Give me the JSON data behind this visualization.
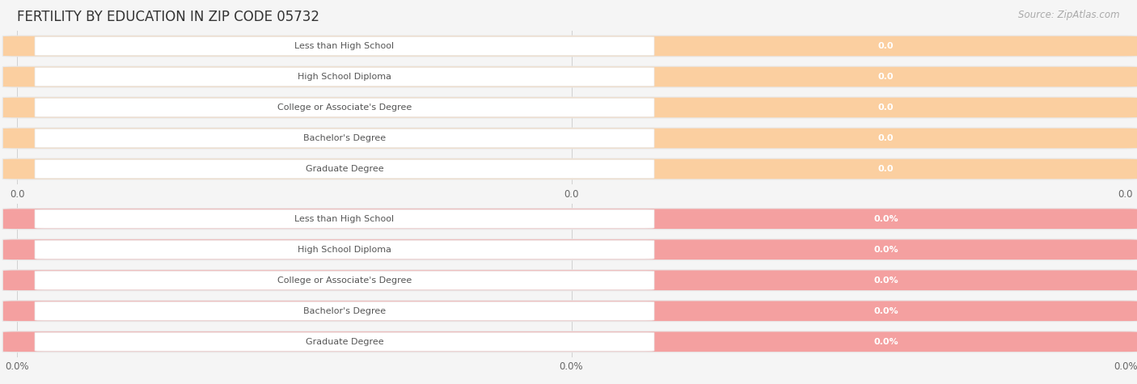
{
  "title": "FERTILITY BY EDUCATION IN ZIP CODE 05732",
  "source": "Source: ZipAtlas.com",
  "categories": [
    "Less than High School",
    "High School Diploma",
    "College or Associate's Degree",
    "Bachelor's Degree",
    "Graduate Degree"
  ],
  "top_values": [
    0.0,
    0.0,
    0.0,
    0.0,
    0.0
  ],
  "bottom_values": [
    0.0,
    0.0,
    0.0,
    0.0,
    0.0
  ],
  "top_bar_color": "#FBCFA0",
  "top_bar_bg": "#f5f5f5",
  "bottom_bar_color": "#F4A0A0",
  "bottom_bar_bg": "#f5f5f5",
  "top_tick_labels": [
    "0.0",
    "0.0",
    "0.0"
  ],
  "bottom_tick_labels": [
    "0.0%",
    "0.0%",
    "0.0%"
  ],
  "background_color": "#f5f5f5",
  "white_color": "#ffffff",
  "label_text_color": "#555555",
  "value_text_color_top": "#c8956a",
  "value_text_color_bottom": "#c07070",
  "title_color": "#333333",
  "source_color": "#aaaaaa",
  "grid_color": "#d0d0d0",
  "bar_outer_color": "#e8e8e8",
  "figsize": [
    14.06,
    4.75
  ],
  "dpi": 100
}
